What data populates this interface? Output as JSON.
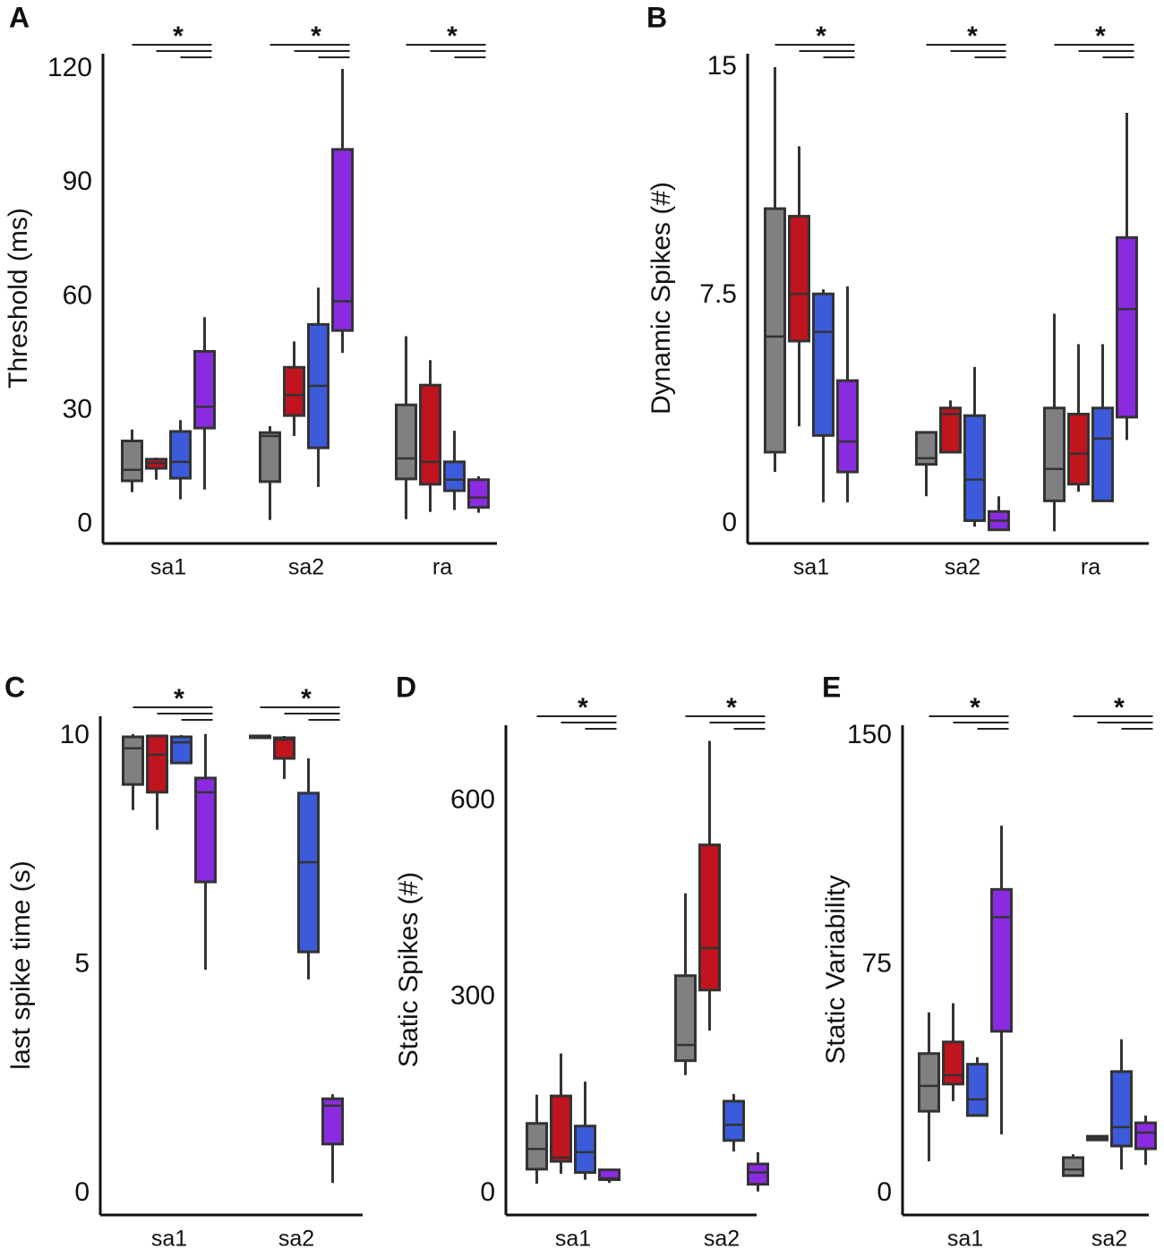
{
  "chart_data": [
    {
      "type": "box",
      "panel_label": "A",
      "y_label": "Threshold (ms)",
      "categories": [
        "sa1",
        "sa2",
        "ra"
      ],
      "ylim": [
        -5,
        124
      ],
      "yticks": [
        0,
        30,
        60,
        90,
        120
      ],
      "annotations": [
        "*",
        "*",
        "*"
      ],
      "series": [
        {
          "color": "#808080",
          "whisker_low": [
            8.5,
            1.2,
            1.4
          ],
          "q1": [
            11.5,
            11.3,
            12
          ],
          "median": [
            14.4,
            23.3,
            17.4
          ],
          "q3": [
            22,
            24.2,
            31.5
          ],
          "whisker_high": [
            25,
            25.9,
            49.6
          ]
        },
        {
          "color": "#c0141e",
          "whisker_low": [
            11.8,
            23.3,
            3.3
          ],
          "q1": [
            14.8,
            28.7,
            10.6
          ],
          "median": [
            16.2,
            34.1,
            16.5
          ],
          "q3": [
            17.2,
            41.4,
            36.7
          ],
          "whisker_high": [
            17.6,
            48.2,
            43.3
          ]
        },
        {
          "color": "#3b5bdb",
          "whisker_low": [
            6.6,
            9.9,
            3.8
          ],
          "q1": [
            12.2,
            20.2,
            8.9
          ],
          "median": [
            16.5,
            36.5,
            11.8
          ],
          "q3": [
            24.5,
            52.7,
            16.5
          ],
          "whisker_high": [
            27.5,
            62.4,
            24.7
          ]
        },
        {
          "color": "#8a2be2",
          "whisker_low": [
            9.2,
            45.2,
            3.1
          ],
          "q1": [
            25.4,
            51.1,
            4.5
          ],
          "median": [
            31,
            58.8,
            7.1
          ],
          "q3": [
            45.6,
            98.8,
            11.8
          ],
          "whisker_high": [
            54.6,
            120,
            12.7
          ]
        }
      ]
    },
    {
      "type": "box",
      "panel_label": "B",
      "y_label": "Dynamic Spikes (#)",
      "categories": [
        "sa1",
        "sa2",
        "ra"
      ],
      "ylim": [
        -0.65,
        15.44
      ],
      "yticks": [
        0,
        7.5,
        15
      ],
      "annotations": [
        "*",
        "*",
        "*"
      ],
      "series": [
        {
          "color": "#808080",
          "whisker_low": [
            1.7,
            0.9,
            -0.25
          ],
          "q1": [
            2.35,
            1.95,
            0.75
          ],
          "median": [
            6.15,
            2.15,
            1.8
          ],
          "q3": [
            10.35,
            3.0,
            3.8
          ],
          "whisker_high": [
            15,
            3.0,
            6.9
          ]
        },
        {
          "color": "#c0141e",
          "whisker_low": [
            3.2,
            2.4,
            1.05
          ],
          "q1": [
            6.0,
            2.35,
            1.3
          ],
          "median": [
            7.55,
            3.6,
            2.3
          ],
          "q3": [
            10.1,
            3.8,
            3.6
          ],
          "whisker_high": [
            12.4,
            4.05,
            5.9
          ]
        },
        {
          "color": "#3b5bdb",
          "whisker_low": [
            0.7,
            -0.1,
            0.75
          ],
          "q1": [
            2.9,
            0.1,
            0.75
          ],
          "median": [
            6.3,
            1.45,
            2.8
          ],
          "q3": [
            7.55,
            3.55,
            3.8
          ],
          "whisker_high": [
            7.7,
            5.15,
            5.9
          ]
        },
        {
          "color": "#8a2be2",
          "whisker_low": [
            0.7,
            -0.2,
            2.75
          ],
          "q1": [
            1.7,
            -0.2,
            3.5
          ],
          "median": [
            2.7,
            0.1,
            7.05
          ],
          "q3": [
            4.7,
            0.4,
            9.4
          ],
          "whisker_high": [
            7.8,
            0.9,
            13.5
          ]
        }
      ]
    },
    {
      "type": "box",
      "panel_label": "C",
      "y_label": "last spike time (s)",
      "categories": [
        "sa1",
        "sa2"
      ],
      "ylim": [
        -0.47,
        10.43
      ],
      "yticks": [
        0,
        5,
        10
      ],
      "annotations": [
        "*",
        "*"
      ],
      "series": [
        {
          "color": "#808080",
          "whisker_low": [
            8.38,
            9.96
          ],
          "q1": [
            8.94,
            9.96
          ],
          "median": [
            9.73,
            9.98
          ],
          "q3": [
            9.98,
            10.0
          ],
          "whisker_high": [
            10.04,
            10.0
          ]
        },
        {
          "color": "#c0141e",
          "whisker_low": [
            7.95,
            9.06
          ],
          "q1": [
            8.77,
            9.51
          ],
          "median": [
            9.59,
            9.92
          ],
          "q3": [
            10,
            9.96
          ],
          "whisker_high": [
            10,
            10
          ]
        },
        {
          "color": "#3b5bdb",
          "whisker_low": [
            9.41,
            4.68
          ],
          "q1": [
            9.41,
            5.28
          ],
          "median": [
            9.86,
            7.24
          ],
          "q3": [
            9.98,
            8.75
          ],
          "whisker_high": [
            10.02,
            9.51
          ]
        },
        {
          "color": "#8a2be2",
          "whisker_low": [
            4.89,
            0.23
          ],
          "q1": [
            6.81,
            1.08
          ],
          "median": [
            8.77,
            1.92
          ],
          "q3": [
            9.08,
            2.07
          ],
          "whisker_high": [
            10.04,
            2.17
          ]
        }
      ]
    },
    {
      "type": "box",
      "panel_label": "D",
      "y_label": "Static Spikes  (#)",
      "categories": [
        "sa1",
        "sa2"
      ],
      "ylim": [
        -33,
        716
      ],
      "yticks": [
        0,
        300,
        600
      ],
      "annotations": [
        "*",
        "*"
      ],
      "series": [
        {
          "color": "#808080",
          "whisker_low": [
            15,
            181
          ],
          "q1": [
            37,
            203
          ],
          "median": [
            68,
            227
          ],
          "q3": [
            107,
            333
          ],
          "whisker_high": [
            151,
            459
          ]
        },
        {
          "color": "#c0141e",
          "whisker_low": [
            30,
            249
          ],
          "q1": [
            49,
            311
          ],
          "median": [
            55,
            375
          ],
          "q3": [
            149,
            533
          ],
          "whisker_high": [
            214,
            692
          ]
        },
        {
          "color": "#3b5bdb",
          "whisker_low": [
            21,
            64
          ],
          "q1": [
            32,
            81
          ],
          "median": [
            63,
            105
          ],
          "q3": [
            103,
            141
          ],
          "whisker_high": [
            171,
            152
          ]
        },
        {
          "color": "#8a2be2",
          "whisker_low": [
            16,
            3
          ],
          "q1": [
            21,
            14
          ],
          "median": [
            23,
            32
          ],
          "q3": [
            36,
            45
          ],
          "whisker_high": [
            37,
            63
          ]
        }
      ]
    },
    {
      "type": "box",
      "panel_label": "E",
      "y_label": "Static Variability",
      "categories": [
        "sa1",
        "sa2"
      ],
      "ylim": [
        -7,
        153.5
      ],
      "yticks": [
        0,
        75,
        150
      ],
      "annotations": [
        "*",
        "*"
      ],
      "series": [
        {
          "color": "#808080",
          "whisker_low": [
            10.6,
            5.9
          ],
          "q1": [
            27,
            5.9
          ],
          "median": [
            35.3,
            7.9
          ],
          "q3": [
            45.9,
            11.8
          ],
          "whisker_high": [
            59.4,
            12.9
          ]
        },
        {
          "color": "#c0141e",
          "whisker_low": [
            30.3,
            17.6
          ],
          "q1": [
            35.9,
            17.6
          ],
          "median": [
            38.8,
            18.2
          ],
          "q3": [
            49.7,
            18.8
          ],
          "whisker_high": [
            62.4,
            18.8
          ]
        },
        {
          "color": "#3b5bdb",
          "whisker_low": [
            25.6,
            7.9
          ],
          "q1": [
            25.6,
            15.6
          ],
          "median": [
            30.9,
            21.8
          ],
          "q3": [
            42.4,
            40
          ],
          "whisker_high": [
            44.7,
            50.6
          ]
        },
        {
          "color": "#8a2be2",
          "whisker_low": [
            19.4,
            9.4
          ],
          "q1": [
            53.2,
            14.7
          ],
          "median": [
            90.6,
            20
          ],
          "q3": [
            99.7,
            23.2
          ],
          "whisker_high": [
            120.6,
            25.6
          ]
        }
      ]
    }
  ]
}
